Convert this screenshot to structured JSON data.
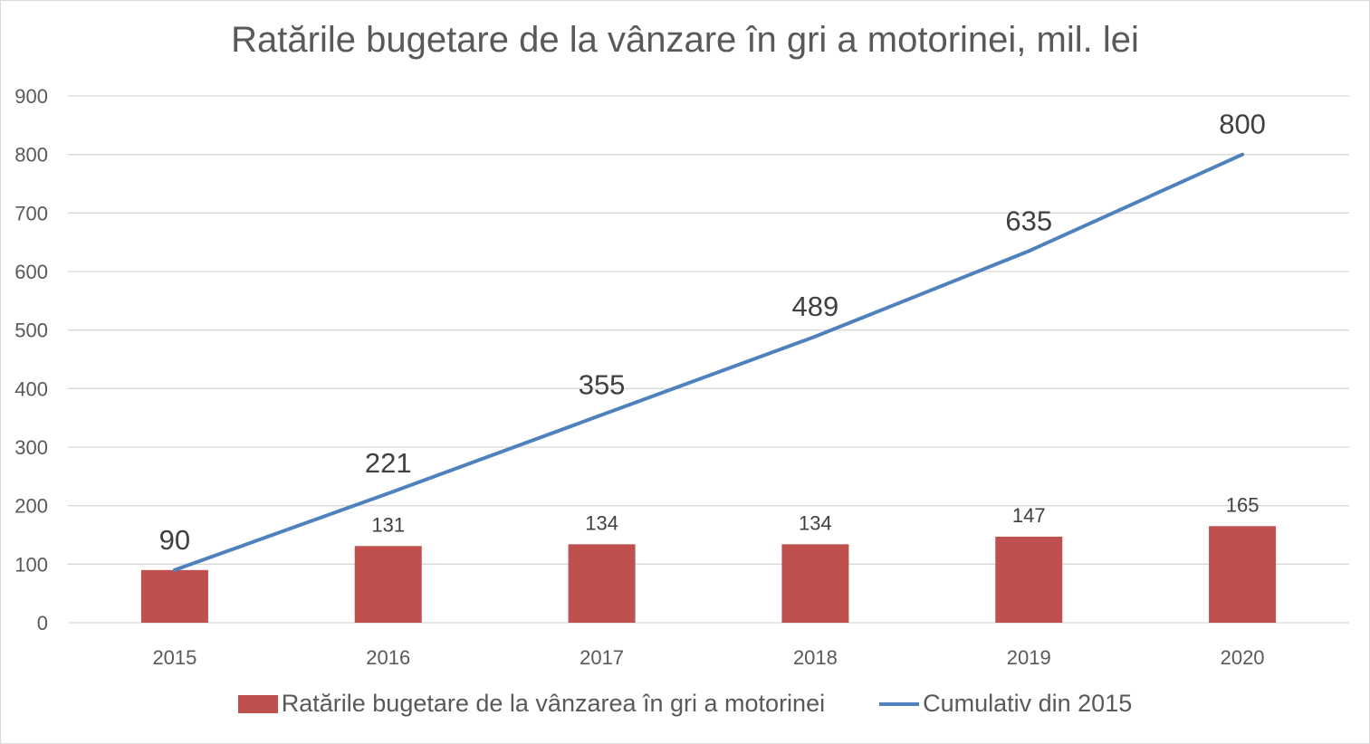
{
  "chart_data": {
    "type": "bar",
    "title": "Ratările bugetare de la vânzare în gri a motorinei, mil. lei",
    "categories": [
      "2015",
      "2016",
      "2017",
      "2018",
      "2019",
      "2020"
    ],
    "ylim": [
      0,
      900
    ],
    "yticks": [
      "0",
      "100",
      "200",
      "300",
      "400",
      "500",
      "600",
      "700",
      "800",
      "900"
    ],
    "grid": true,
    "legend_position": "bottom",
    "series": [
      {
        "name": "Ratările bugetare de la vânzarea în gri a motorinei",
        "kind": "bar",
        "color": "#c0504d",
        "values": [
          90,
          131,
          134,
          134,
          147,
          165
        ],
        "labels": [
          "",
          "131",
          "134",
          "134",
          "147",
          "165"
        ]
      },
      {
        "name": "Cumulativ din 2015",
        "kind": "line",
        "color": "#4f81bd",
        "values": [
          90,
          221,
          355,
          489,
          635,
          800
        ],
        "labels": [
          "90",
          "221",
          "355",
          "489",
          "635",
          "800"
        ]
      }
    ]
  }
}
